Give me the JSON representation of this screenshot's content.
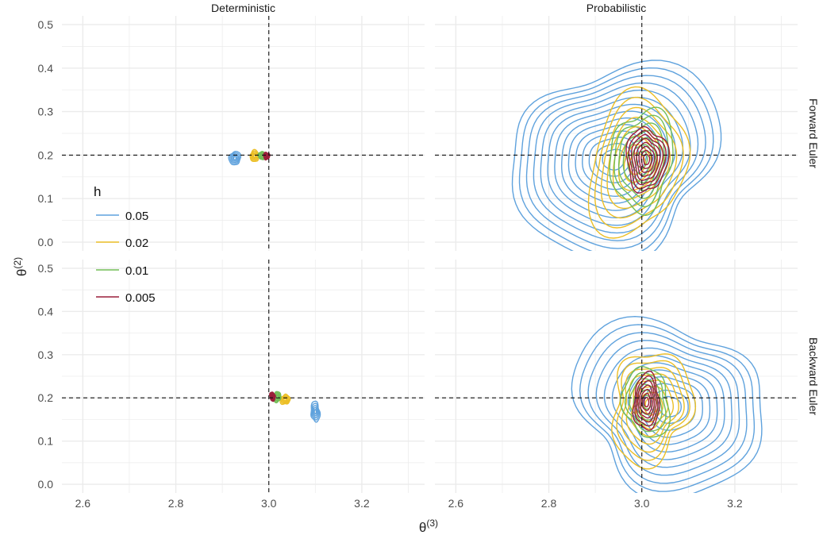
{
  "chart_data": {
    "type": "contour",
    "facet_columns": [
      "Deterministic",
      "Probabilistic"
    ],
    "facet_rows": [
      "Forward Euler",
      "Backward Euler"
    ],
    "xlabel": "θ",
    "xlabel_sup": "(3)",
    "ylabel": "θ",
    "ylabel_sup": "(2)",
    "xlim": [
      2.555,
      3.335
    ],
    "ylim": [
      -0.02,
      0.52
    ],
    "x_ticks": [
      "2.6",
      "2.8",
      "3.0",
      "3.2"
    ],
    "y_ticks": [
      "0.0",
      "0.1",
      "0.2",
      "0.3",
      "0.4",
      "0.5"
    ],
    "reference_lines": {
      "x": 3.0,
      "y": 0.2
    },
    "grid": true,
    "legend": {
      "title": "h",
      "placement": "inside-left",
      "items": [
        {
          "label": "0.05",
          "color": "#5fa2dd"
        },
        {
          "label": "0.02",
          "color": "#ecbf26"
        },
        {
          "label": "0.01",
          "color": "#72bd57"
        },
        {
          "label": "0.005",
          "color": "#9a1e3a"
        }
      ]
    },
    "panels": [
      {
        "column": "Deterministic",
        "row": "Forward Euler",
        "series": [
          {
            "h": "0.05",
            "center": [
              2.927,
              0.193
            ],
            "spread": [
              0.012,
              0.016
            ],
            "levels": 5
          },
          {
            "h": "0.02",
            "center": [
              2.969,
              0.198
            ],
            "spread": [
              0.01,
              0.012
            ],
            "levels": 5
          },
          {
            "h": "0.01",
            "center": [
              2.985,
              0.199
            ],
            "spread": [
              0.007,
              0.01
            ],
            "levels": 5
          },
          {
            "h": "0.005",
            "center": [
              2.995,
              0.198
            ],
            "spread": [
              0.006,
              0.009
            ],
            "levels": 5
          }
        ]
      },
      {
        "column": "Probabilistic",
        "row": "Forward Euler",
        "series": [
          {
            "h": "0.05",
            "center": [
              2.94,
              0.19
            ],
            "spread": [
              0.23,
              0.21
            ],
            "levels": 14
          },
          {
            "h": "0.02",
            "center": [
              2.99,
              0.18
            ],
            "spread": [
              0.11,
              0.15
            ],
            "levels": 8
          },
          {
            "h": "0.01",
            "center": [
              3.0,
              0.19
            ],
            "spread": [
              0.07,
              0.11
            ],
            "levels": 7
          },
          {
            "h": "0.005",
            "center": [
              3.01,
              0.19
            ],
            "spread": [
              0.04,
              0.08
            ],
            "levels": 8
          }
        ]
      },
      {
        "column": "Deterministic",
        "row": "Backward Euler",
        "series": [
          {
            "h": "0.05",
            "center": [
              3.1,
              0.168
            ],
            "spread": [
              0.01,
              0.022
            ],
            "levels": 5
          },
          {
            "h": "0.02",
            "center": [
              3.035,
              0.196
            ],
            "spread": [
              0.01,
              0.012
            ],
            "levels": 5
          },
          {
            "h": "0.01",
            "center": [
              3.018,
              0.202
            ],
            "spread": [
              0.008,
              0.012
            ],
            "levels": 5
          },
          {
            "h": "0.005",
            "center": [
              3.008,
              0.203
            ],
            "spread": [
              0.006,
              0.01
            ],
            "levels": 5
          }
        ]
      },
      {
        "column": "Probabilistic",
        "row": "Backward Euler",
        "series": [
          {
            "h": "0.05",
            "center": [
              3.06,
              0.18
            ],
            "spread": [
              0.21,
              0.19
            ],
            "levels": 12
          },
          {
            "h": "0.02",
            "center": [
              3.02,
              0.18
            ],
            "spread": [
              0.09,
              0.12
            ],
            "levels": 8
          },
          {
            "h": "0.01",
            "center": [
              3.01,
              0.19
            ],
            "spread": [
              0.05,
              0.08
            ],
            "levels": 6
          },
          {
            "h": "0.005",
            "center": [
              3.01,
              0.19
            ],
            "spread": [
              0.03,
              0.06
            ],
            "levels": 7
          }
        ]
      }
    ]
  }
}
